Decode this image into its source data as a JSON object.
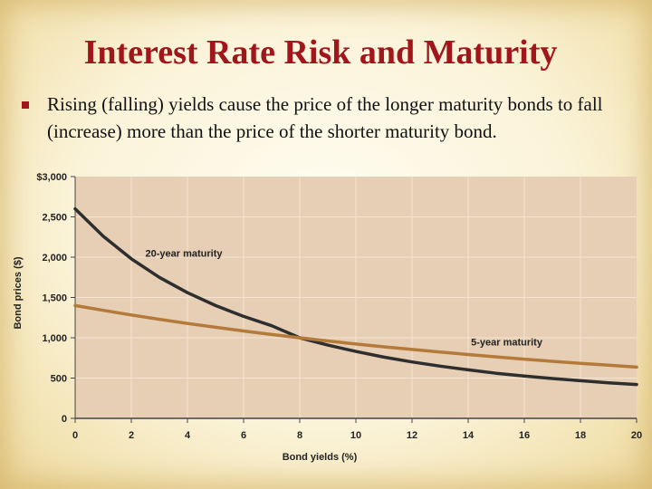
{
  "slide": {
    "title": "Interest Rate Risk and Maturity",
    "bullet": "Rising (falling) yields cause the price of the longer maturity bonds to fall  (increase)  more than the price of the shorter maturity bond."
  },
  "chart_data": {
    "type": "line",
    "xlabel": "Bond yields (%)",
    "ylabel": "Bond prices ($)",
    "xlim": [
      0,
      20
    ],
    "ylim": [
      0,
      3000
    ],
    "x_ticks": [
      "0",
      "2",
      "4",
      "6",
      "8",
      "10",
      "12",
      "14",
      "16",
      "18",
      "20"
    ],
    "y_ticks": [
      "0",
      "500",
      "1,000",
      "1,500",
      "2,000",
      "2,500",
      "$3,000"
    ],
    "grid": true,
    "colors": {
      "plot_bg": "#e7cfb5",
      "grid": "#f4e4d2",
      "series_20yr": "#2e2e2e",
      "series_5yr": "#b47a3a",
      "axis": "#444444"
    },
    "series": [
      {
        "name": "20-year maturity",
        "x": [
          0,
          1,
          2,
          3,
          4,
          5,
          6,
          7,
          8,
          9,
          10,
          11,
          12,
          13,
          14,
          15,
          16,
          17,
          18,
          19,
          20
        ],
        "y": [
          2600,
          2259,
          1980,
          1750,
          1560,
          1400,
          1265,
          1149,
          1000,
          909,
          830,
          760,
          700,
          648,
          602,
          560,
          525,
          494,
          467,
          442,
          420
        ]
      },
      {
        "name": "5-year maturity",
        "x": [
          0,
          1,
          2,
          3,
          4,
          5,
          6,
          7,
          8,
          9,
          10,
          11,
          12,
          13,
          14,
          15,
          16,
          17,
          18,
          19,
          20
        ],
        "y": [
          1400,
          1340,
          1283,
          1229,
          1178,
          1130,
          1084,
          1041,
          1000,
          961,
          923,
          888,
          855,
          823,
          792,
          763,
          735,
          708,
          683,
          659,
          636
        ]
      }
    ]
  }
}
